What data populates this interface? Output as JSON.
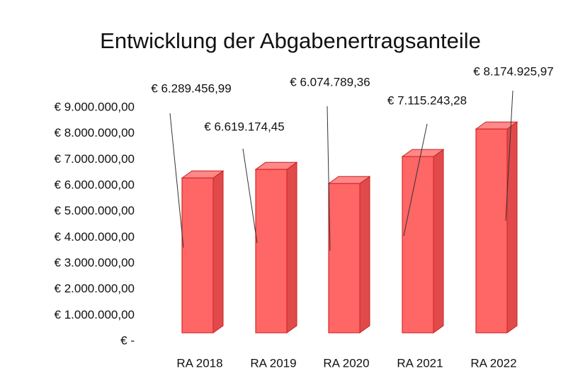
{
  "chart_data": {
    "type": "bar3d",
    "title": "Entwicklung der Abgabenertragsanteile",
    "categories": [
      "RA 2018",
      "RA 2019",
      "RA 2020",
      "RA 2021",
      "RA 2022"
    ],
    "values": [
      6289456.99,
      6619174.45,
      6074789.36,
      7115243.28,
      8174925.97
    ],
    "value_labels": [
      "€ 6.289.456,99",
      "€ 6.619.174,45",
      "€ 6.074.789,36",
      "€ 7.115.243,28",
      "€ 8.174.925,97"
    ],
    "color": "#ff6666",
    "ylim": [
      0,
      9000000
    ],
    "yticks": [
      {
        "value": 0,
        "label": "€ -"
      },
      {
        "value": 1000000,
        "label": "€ 1.000.000,00"
      },
      {
        "value": 2000000,
        "label": "€ 2.000.000,00"
      },
      {
        "value": 3000000,
        "label": "€ 3.000.000,00"
      },
      {
        "value": 4000000,
        "label": "€ 4.000.000,00"
      },
      {
        "value": 5000000,
        "label": "€ 5.000.000,00"
      },
      {
        "value": 6000000,
        "label": "€ 6.000.000,00"
      },
      {
        "value": 7000000,
        "label": "€ 7.000.000,00"
      },
      {
        "value": 8000000,
        "label": "€ 8.000.000,00"
      },
      {
        "value": 9000000,
        "label": "€ 9.000.000,00"
      }
    ],
    "grid": false
  }
}
